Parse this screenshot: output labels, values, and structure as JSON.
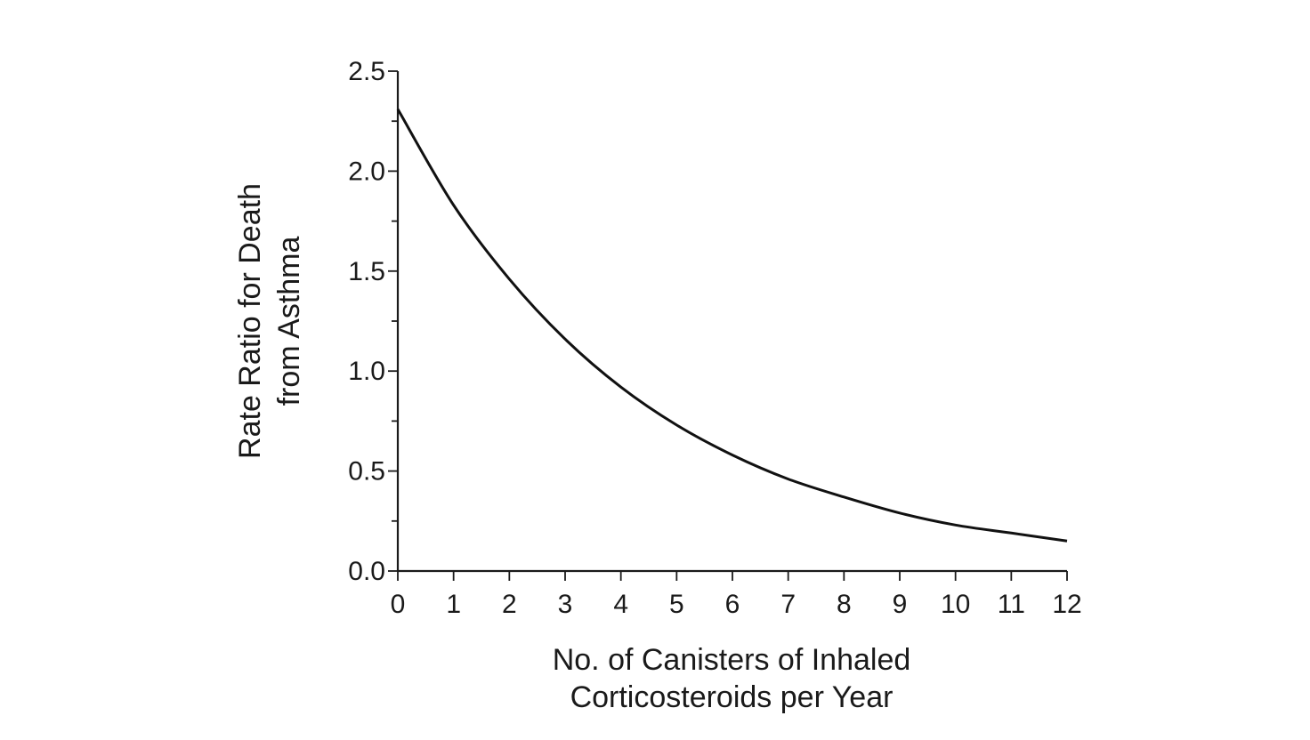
{
  "chart_data": {
    "type": "line",
    "title": "",
    "xlabel": [
      "No. of Canisters of Inhaled",
      "Corticosteroids per Year"
    ],
    "ylabel": [
      "Rate Ratio for Death",
      "from Asthma"
    ],
    "xlim": [
      0,
      12
    ],
    "ylim": [
      0,
      2.5
    ],
    "x_ticks": [
      "0",
      "1",
      "2",
      "3",
      "4",
      "5",
      "6",
      "7",
      "8",
      "9",
      "10",
      "11",
      "12"
    ],
    "y_ticks": [
      "0.0",
      "0.5",
      "1.0",
      "1.5",
      "2.0",
      "2.5"
    ],
    "grid": false,
    "legend": "none",
    "series": [
      {
        "x": [
          0,
          1,
          2,
          3,
          4,
          5,
          6,
          7,
          8,
          9,
          10,
          11,
          12
        ],
        "y": [
          2.31,
          1.83,
          1.46,
          1.16,
          0.92,
          0.73,
          0.58,
          0.46,
          0.37,
          0.29,
          0.23,
          0.19,
          0.15
        ]
      }
    ]
  }
}
